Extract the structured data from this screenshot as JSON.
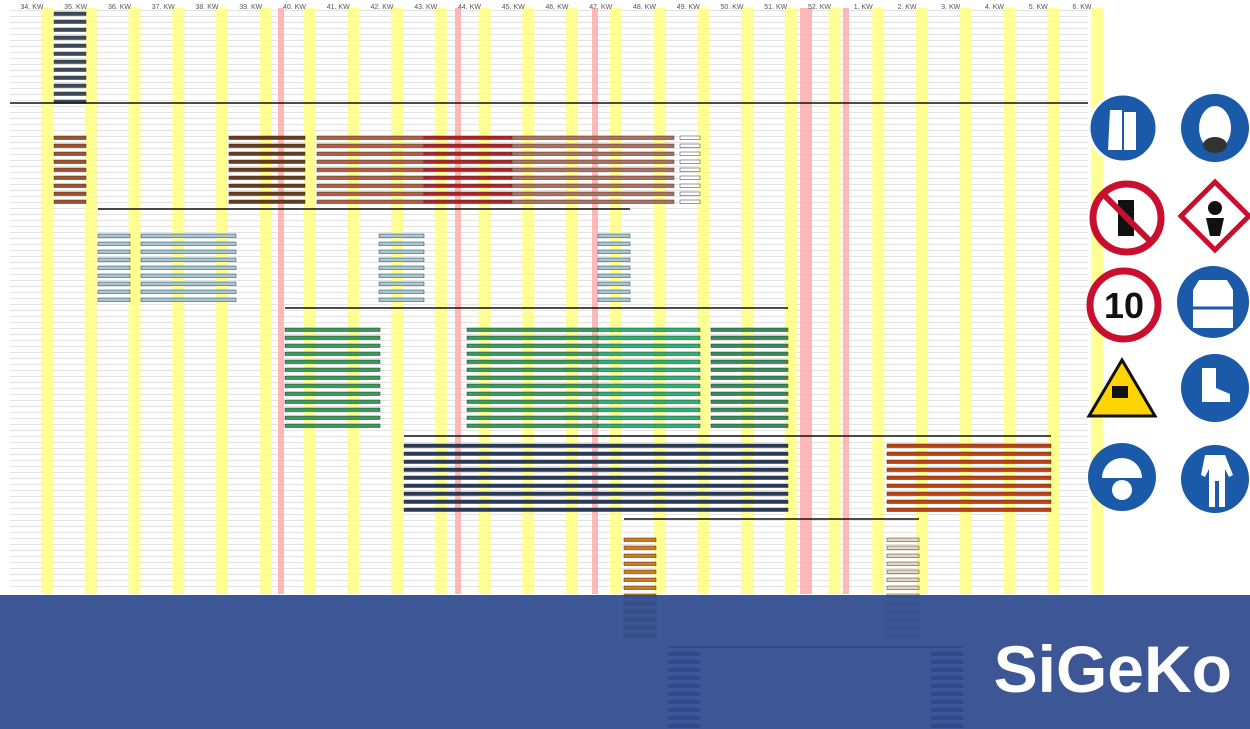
{
  "week_labels": [
    "34. KW",
    "35. KW",
    "36. KW",
    "37. KW",
    "38. KW",
    "39. KW",
    "40. KW",
    "41. KW",
    "42. KW",
    "43. KW",
    "44. KW",
    "45. KW",
    "46. KW",
    "47. KW",
    "48. KW",
    "49. KW",
    "50. KW",
    "51. KW",
    "52. KW",
    "1. KW",
    "2. KW",
    "3. KW",
    "4. KW",
    "5. KW",
    "6. KW"
  ],
  "speed_limit_sign": "10",
  "brand": "SiGeKo"
}
